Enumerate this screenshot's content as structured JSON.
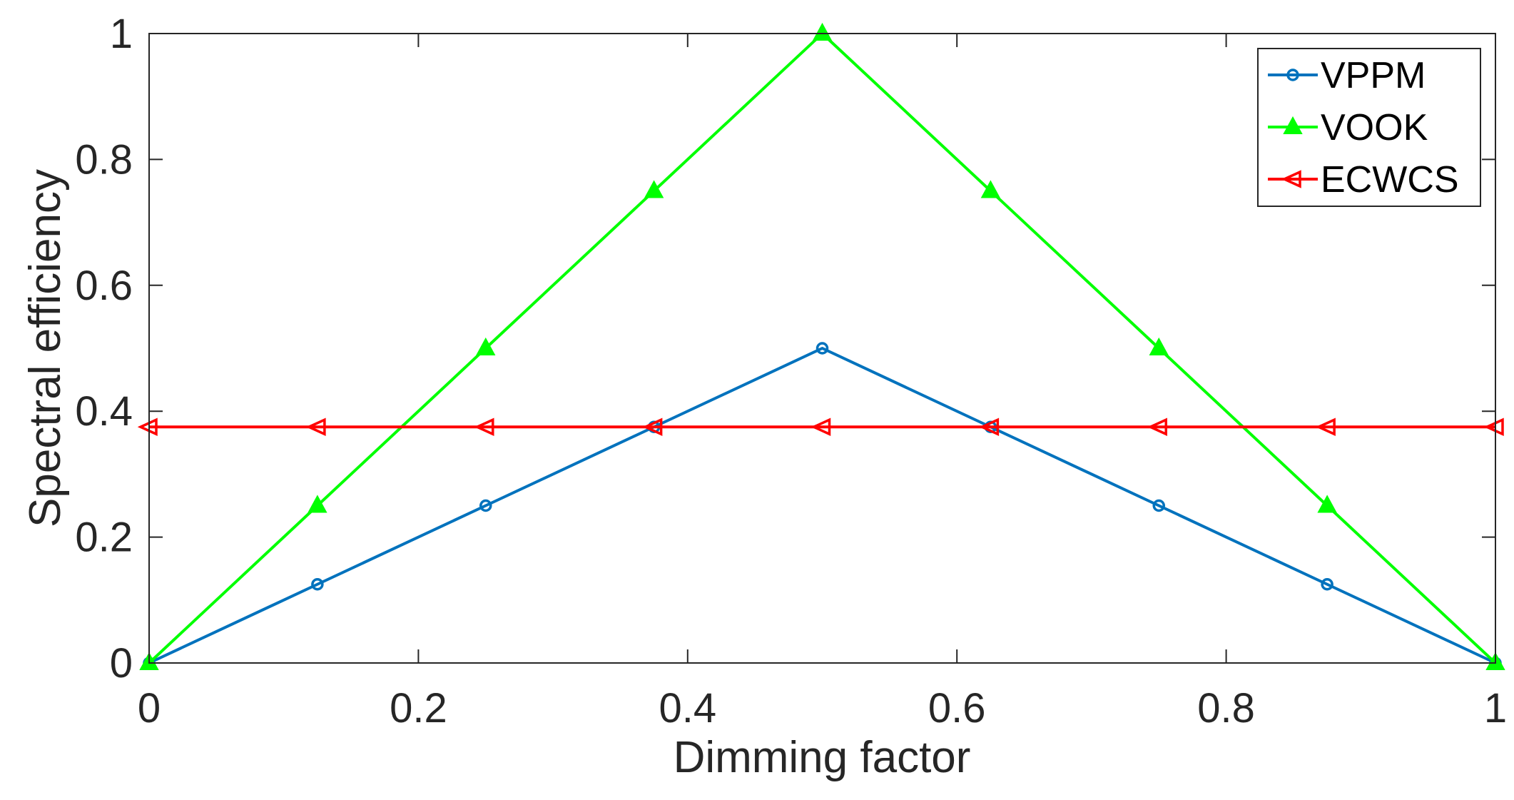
{
  "chart_data": {
    "type": "line",
    "title": "",
    "xlabel": "Dimming factor",
    "ylabel": "Spectral efficiency",
    "xlim": [
      0,
      1
    ],
    "ylim": [
      0,
      1
    ],
    "xticks": [
      0,
      0.2,
      0.4,
      0.6,
      0.8,
      1
    ],
    "yticks": [
      0,
      0.2,
      0.4,
      0.6,
      0.8,
      1
    ],
    "xtick_labels": [
      "0",
      "0.2",
      "0.4",
      "0.6",
      "0.8",
      "1"
    ],
    "ytick_labels": [
      "0",
      "0.2",
      "0.4",
      "0.6",
      "0.8",
      "1"
    ],
    "grid": false,
    "legend_position": "top-right",
    "series": [
      {
        "name": "VPPM",
        "color": "#0072BD",
        "marker": "circle",
        "x": [
          0,
          0.125,
          0.25,
          0.375,
          0.5,
          0.625,
          0.75,
          0.875,
          1
        ],
        "y": [
          0,
          0.125,
          0.25,
          0.375,
          0.5,
          0.375,
          0.25,
          0.125,
          0
        ]
      },
      {
        "name": "VOOK",
        "color": "#00FF00",
        "marker": "triangle-up",
        "x": [
          0,
          0.125,
          0.25,
          0.375,
          0.5,
          0.625,
          0.75,
          0.875,
          1
        ],
        "y": [
          0,
          0.25,
          0.5,
          0.75,
          1,
          0.75,
          0.5,
          0.25,
          0
        ]
      },
      {
        "name": "ECWCS",
        "color": "#FF0000",
        "marker": "triangle-left",
        "x": [
          0,
          0.125,
          0.25,
          0.375,
          0.5,
          0.625,
          0.75,
          0.875,
          1
        ],
        "y": [
          0.375,
          0.375,
          0.375,
          0.375,
          0.375,
          0.375,
          0.375,
          0.375,
          0.375
        ]
      }
    ]
  }
}
